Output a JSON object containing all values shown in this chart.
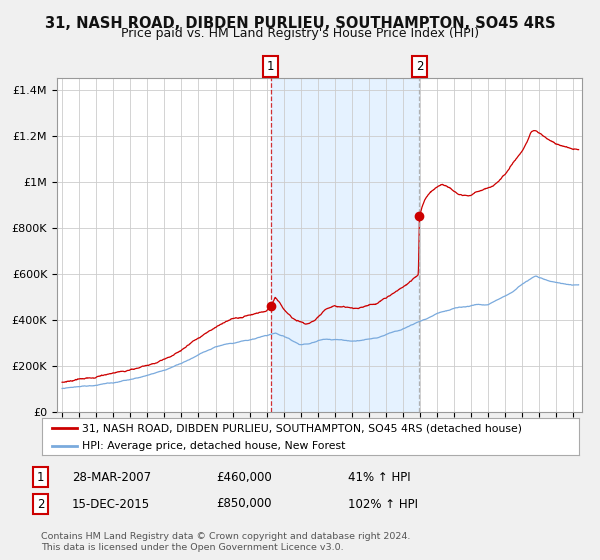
{
  "title": "31, NASH ROAD, DIBDEN PURLIEU, SOUTHAMPTON, SO45 4RS",
  "subtitle": "Price paid vs. HM Land Registry's House Price Index (HPI)",
  "title_fontsize": 10.5,
  "subtitle_fontsize": 9,
  "background_color": "#f0f0f0",
  "plot_bg_color": "#ffffff",
  "grid_color": "#cccccc",
  "hpi_line_color": "#7aaadd",
  "price_line_color": "#cc0000",
  "shade_color": "#ddeeff",
  "marker_color": "#cc0000",
  "sale1_year": 2007.24,
  "sale1_price": 460000,
  "sale2_year": 2015.96,
  "sale2_price": 850000,
  "ylim": [
    0,
    1450000
  ],
  "xlim_start": 1994.7,
  "xlim_end": 2025.5,
  "legend_line1": "31, NASH ROAD, DIBDEN PURLIEU, SOUTHAMPTON, SO45 4RS (detached house)",
  "legend_line2": "HPI: Average price, detached house, New Forest",
  "footer1": "Contains HM Land Registry data © Crown copyright and database right 2024.",
  "footer2": "This data is licensed under the Open Government Licence v3.0.",
  "table_row1_num": "1",
  "table_row1_date": "28-MAR-2007",
  "table_row1_price": "£460,000",
  "table_row1_hpi": "41% ↑ HPI",
  "table_row2_num": "2",
  "table_row2_date": "15-DEC-2015",
  "table_row2_price": "£850,000",
  "table_row2_hpi": "102% ↑ HPI"
}
